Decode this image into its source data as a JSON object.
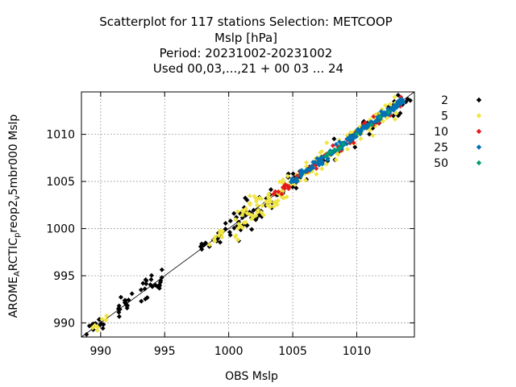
{
  "chart_data": {
    "type": "scatter",
    "title_lines": [
      "Scatterplot for  117 stations Selection: METCOOP",
      "Mslp [hPa]",
      "Period: 20231002-20231002",
      "Used  00,03,...,21  + 00 03 ... 24"
    ],
    "xlabel": "OBS Mslp",
    "ylabel_parts": {
      "a": "AROME",
      "a_sub": "A",
      "b": "RCTIC",
      "b_sub": "p",
      "c": "reop2",
      "c_sub": "v",
      "d": "5mbr000 Mslp"
    },
    "xlim": [
      988.5,
      1014.5
    ],
    "ylim": [
      988.5,
      1014.5
    ],
    "xticks": [
      990,
      995,
      1000,
      1005,
      1010
    ],
    "yticks": [
      990,
      995,
      1000,
      1005,
      1010
    ],
    "grid": true,
    "legend_position": "right",
    "series": [
      {
        "name": "2",
        "color": "#000000",
        "clusters": [
          {
            "x0": 988.7,
            "x1": 990.5,
            "n": 12,
            "s": 0.45
          },
          {
            "x0": 991.0,
            "x1": 992.8,
            "n": 16,
            "s": 0.5
          },
          {
            "x0": 993.0,
            "x1": 994.8,
            "n": 22,
            "s": 0.6
          },
          {
            "x0": 997.8,
            "x1": 999.8,
            "n": 18,
            "s": 0.35
          },
          {
            "x0": 1000.0,
            "x1": 1003.0,
            "n": 38,
            "s": 0.9
          },
          {
            "x0": 1003.0,
            "x1": 1014.2,
            "n": 80,
            "s": 0.55
          }
        ]
      },
      {
        "name": "5",
        "color": "#f0e442",
        "clusters": [
          {
            "x0": 989.3,
            "x1": 990.5,
            "n": 8,
            "s": 0.35
          },
          {
            "x0": 998.0,
            "x1": 1000.5,
            "n": 10,
            "s": 0.4
          },
          {
            "x0": 1000.5,
            "x1": 1004.5,
            "n": 70,
            "s": 0.85
          },
          {
            "x0": 1004.5,
            "x1": 1013.5,
            "n": 110,
            "s": 0.55
          }
        ]
      },
      {
        "name": "10",
        "color": "#e31a1c",
        "clusters": [
          {
            "x0": 1003.5,
            "x1": 1013.5,
            "n": 70,
            "s": 0.3
          }
        ]
      },
      {
        "name": "25",
        "color": "#0072b2",
        "clusters": [
          {
            "x0": 1004.8,
            "x1": 1013.8,
            "n": 160,
            "s": 0.22
          }
        ]
      },
      {
        "name": "50",
        "color": "#009e73",
        "clusters": [
          {
            "x0": 1006.5,
            "x1": 1012.5,
            "n": 12,
            "s": 0.12
          }
        ]
      }
    ],
    "diagonal": [
      [
        988.5,
        988.5
      ],
      [
        1014.5,
        1014.5
      ]
    ]
  }
}
